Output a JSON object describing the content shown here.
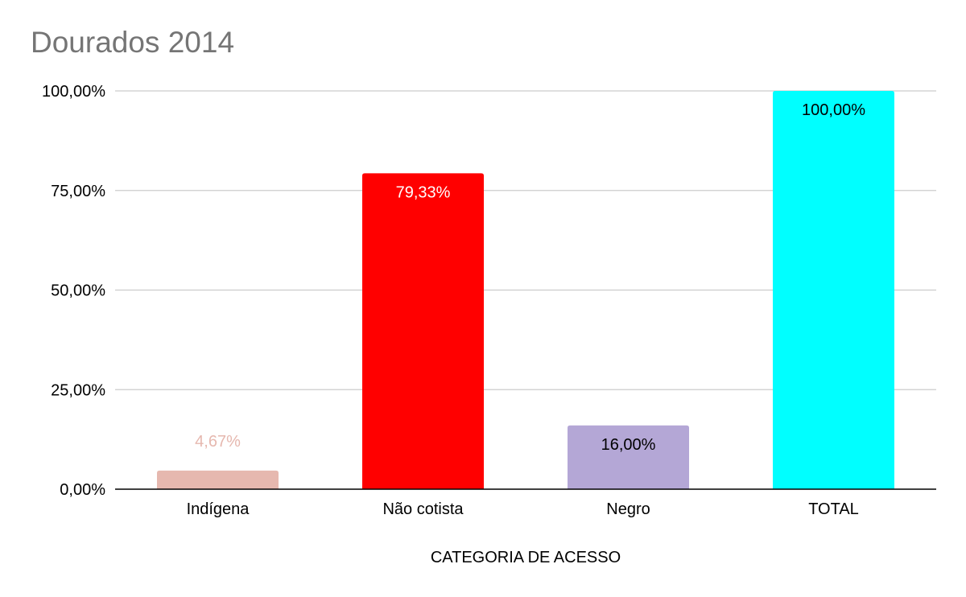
{
  "chart_data": {
    "type": "bar",
    "title": "Dourados 2014",
    "xlabel": "CATEGORIA DE ACESSO",
    "ylabel": "",
    "categories": [
      "Indígena",
      "Não cotista",
      "Negro",
      "TOTAL"
    ],
    "values": [
      4.67,
      79.33,
      16.0,
      100.0
    ],
    "data_labels": [
      "4,67%",
      "79,33%",
      "16,00%",
      "100,00%"
    ],
    "bar_colors": [
      "#e6b8af",
      "#ff0000",
      "#b4a7d6",
      "#00ffff"
    ],
    "label_colors": [
      "#e6b8af",
      "#ffffff",
      "#000000",
      "#000000"
    ],
    "label_positions": [
      "above",
      "inside",
      "inside",
      "inside"
    ],
    "ylim": [
      0,
      100
    ],
    "yticks": [
      0,
      25,
      50,
      75,
      100
    ],
    "ytick_labels": [
      "0,00%",
      "25,00%",
      "50,00%",
      "75,00%",
      "100,00%"
    ],
    "grid": true,
    "legend": "none",
    "colors": {
      "title": "#757575",
      "grid": "#cccccc",
      "axis": "#000000"
    }
  }
}
